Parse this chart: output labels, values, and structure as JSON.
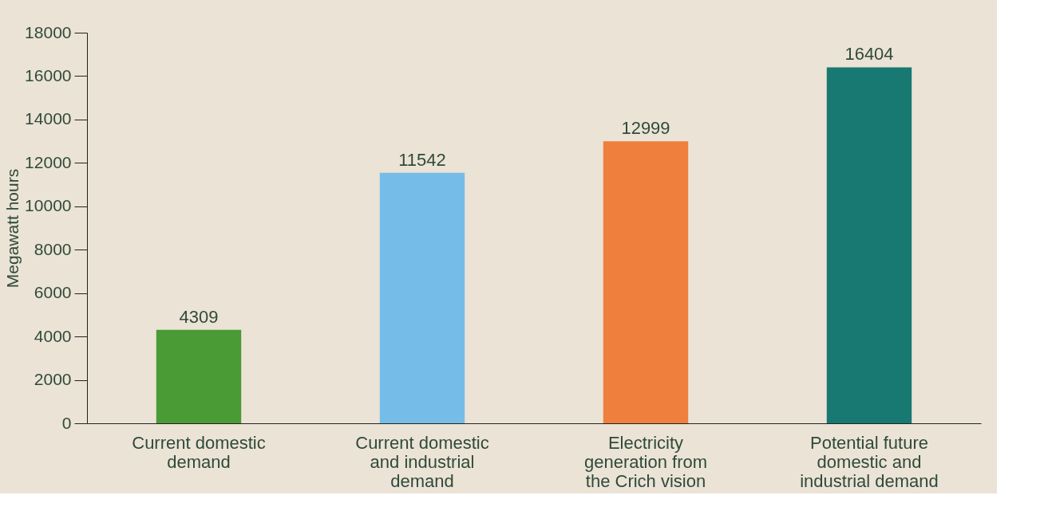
{
  "chart_data": {
    "type": "bar",
    "ylabel": "Megawatt hours",
    "categories": [
      "Current domestic demand",
      "Current domestic and industrial demand",
      "Electricity generation from the Crich vision",
      "Potential future domestic and industrial demand"
    ],
    "values": [
      4309,
      11542,
      12999,
      16404
    ],
    "colors": [
      "#4a9a35",
      "#75bde8",
      "#ef7f3c",
      "#187872"
    ],
    "ylim": [
      0,
      18000
    ],
    "yticks": [
      0,
      2000,
      4000,
      6000,
      8000,
      10000,
      12000,
      14000,
      16000,
      18000
    ],
    "data_labels": true,
    "grid": false
  }
}
